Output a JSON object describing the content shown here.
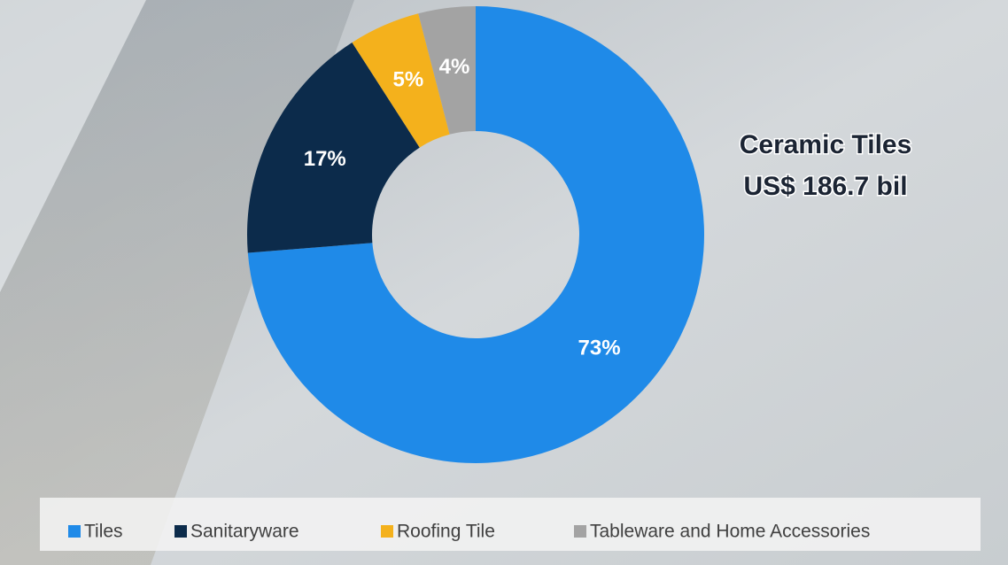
{
  "chart_data": {
    "type": "donut",
    "categories": [
      "Tiles",
      "Sanitaryware",
      "Roofing Tile",
      "Tableware and Home Accessories"
    ],
    "values": [
      73,
      17,
      5,
      4
    ],
    "value_labels": [
      "73%",
      "17%",
      "5%",
      "4%"
    ],
    "colors": [
      "#1f8ae8",
      "#0c2b4b",
      "#f4b11c",
      "#a3a3a3"
    ],
    "annotation": [
      "Ceramic Tiles",
      "US$ 186.7 bil"
    ],
    "legend": "bottom"
  }
}
